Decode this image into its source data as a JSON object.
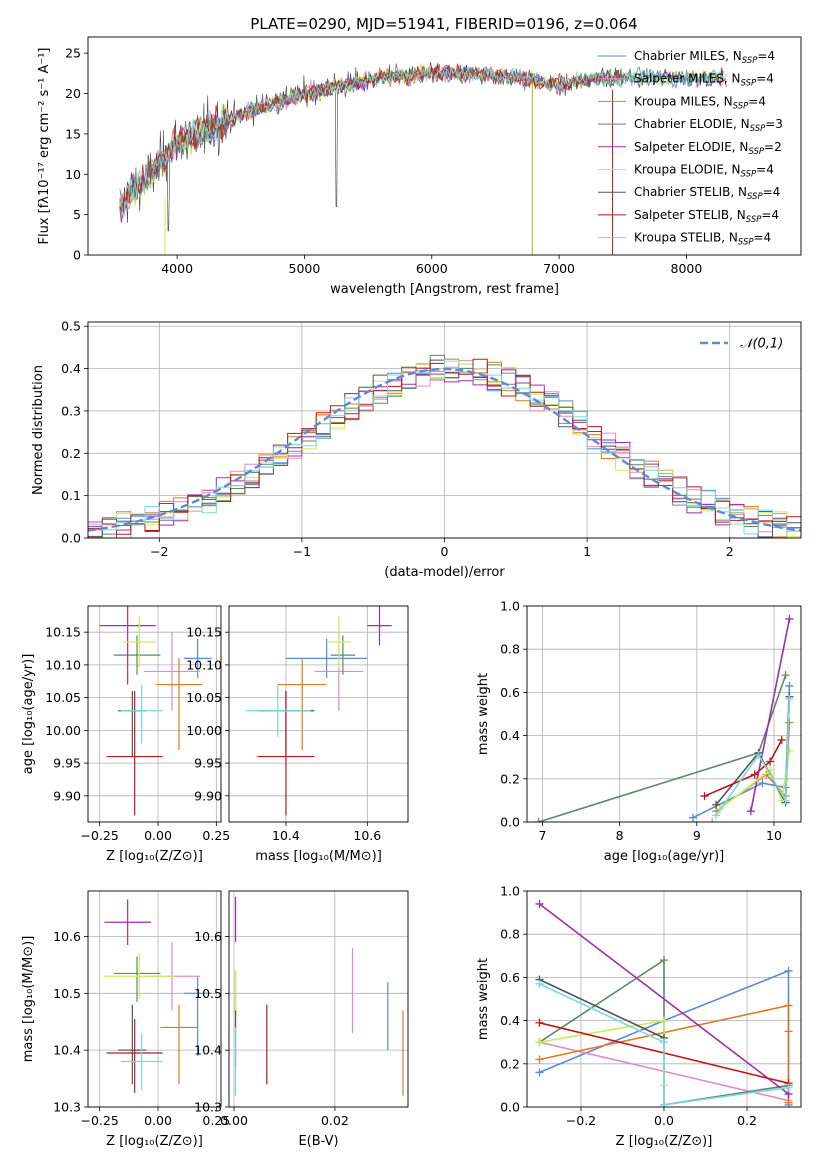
{
  "title": "PLATE=0290, MJD=51941, FIBERID=0196, z=0.064",
  "models": [
    {
      "name": "Chabrier MILES",
      "nssp": "4",
      "color": "#5b8bd8"
    },
    {
      "name": "Salpeter MILES",
      "nssp": "4",
      "color": "#e78ac3"
    },
    {
      "name": "Kroupa MILES",
      "nssp": "4",
      "color": "#e07a22"
    },
    {
      "name": "Chabrier ELODIE",
      "nssp": "3",
      "color": "#5a8a6a"
    },
    {
      "name": "Salpeter ELODIE",
      "nssp": "2",
      "color": "#9b30b0"
    },
    {
      "name": "Kroupa ELODIE",
      "nssp": "4",
      "color": "#c8ef5a"
    },
    {
      "name": "Chabrier STELIB",
      "nssp": "4",
      "color": "#555555"
    },
    {
      "name": "Salpeter STELIB",
      "nssp": "4",
      "color": "#c01818"
    },
    {
      "name": "Kroupa STELIB",
      "nssp": "4",
      "color": "#7ad8e0"
    }
  ],
  "chart_data": [
    {
      "type": "line",
      "xlabel": "wavelength [Angstrom, rest frame]",
      "ylabel": "Flux [fλ10⁻¹⁷ erg cm⁻² s⁻¹ A⁻¹]",
      "xlim": [
        3300,
        8900
      ],
      "ylim": [
        0,
        27
      ],
      "xticks": [
        4000,
        5000,
        6000,
        7000,
        8000
      ],
      "yticks": [
        0,
        5,
        10,
        15,
        20,
        25
      ],
      "data_x_range": [
        3550,
        7500
      ],
      "spectrum_trend": [
        [
          3550,
          6
        ],
        [
          3650,
          8
        ],
        [
          3800,
          10
        ],
        [
          4000,
          14
        ],
        [
          4300,
          16
        ],
        [
          4600,
          18
        ],
        [
          5000,
          20
        ],
        [
          5300,
          21
        ],
        [
          5600,
          22
        ],
        [
          6000,
          22.5
        ],
        [
          6300,
          22.5
        ],
        [
          6700,
          22
        ],
        [
          7000,
          21
        ],
        [
          7300,
          22
        ],
        [
          7500,
          22
        ]
      ],
      "model_end_x": [
        8220,
        7420,
        7480,
        8300,
        8320,
        8300,
        8300,
        7480,
        8320
      ],
      "grid": false,
      "legend": "upper right"
    },
    {
      "type": "step",
      "xlabel": "(data-model)/error",
      "ylabel": "Normed distribution",
      "xlim": [
        -2.5,
        2.5
      ],
      "ylim": [
        0,
        0.51
      ],
      "xticks": [
        -2,
        -1,
        0,
        1,
        2
      ],
      "yticks": [
        0.0,
        0.1,
        0.2,
        0.3,
        0.4,
        0.5
      ],
      "bin_width": 0.1,
      "reference_curve": "𝒩(0,1)",
      "reference_color": "#5b8bd8",
      "grid": true,
      "legend": "upper right"
    },
    {
      "type": "errorbar",
      "xlabel": "Z [log₁₀(Z/Z⊙)]",
      "ylabel": "age  [log₁₀(age/yr)]",
      "xlim": [
        -0.3,
        0.27
      ],
      "ylim": [
        9.86,
        10.19
      ],
      "xticks": [
        -0.25,
        0.0,
        0.25
      ],
      "yticks": [
        9.9,
        9.95,
        10.0,
        10.05,
        10.1,
        10.15
      ],
      "points": [
        {
          "x": 0.17,
          "y": 10.11,
          "xe": [
            0.06,
            0.06
          ],
          "ye": [
            0.03,
            0.03
          ]
        },
        {
          "x": 0.06,
          "y": 10.09,
          "xe": [
            0.12,
            0.12
          ],
          "ye": [
            0.06,
            0.06
          ]
        },
        {
          "x": 0.09,
          "y": 10.07,
          "xe": [
            0.1,
            0.1
          ],
          "ye": [
            0.1,
            0.04
          ]
        },
        {
          "x": -0.09,
          "y": 10.115,
          "xe": [
            0.1,
            0.1
          ],
          "ye": [
            0.03,
            0.03
          ]
        },
        {
          "x": -0.13,
          "y": 10.16,
          "xe": [
            0.12,
            0.12
          ],
          "ye": [
            0.09,
            0.03
          ]
        },
        {
          "x": -0.08,
          "y": 10.135,
          "xe": [
            0.07,
            0.07
          ],
          "ye": [
            0.04,
            0.04
          ]
        },
        {
          "x": -0.11,
          "y": 10.03,
          "xe": [
            0.06,
            0.06
          ],
          "ye": [
            0.07,
            0.03
          ]
        },
        {
          "x": -0.1,
          "y": 9.96,
          "xe": [
            0.12,
            0.12
          ],
          "ye": [
            0.09,
            0.1
          ]
        },
        {
          "x": -0.07,
          "y": 10.03,
          "xe": [
            0.09,
            0.09
          ],
          "ye": [
            0.05,
            0.04
          ]
        }
      ],
      "grid": true
    },
    {
      "type": "errorbar",
      "xlabel": "mass [log₁₀(M/M⊙)]",
      "ylabel": "",
      "xlim": [
        10.26,
        10.7
      ],
      "ylim": [
        9.86,
        10.19
      ],
      "xticks": [
        10.4,
        10.6
      ],
      "yticks": [
        9.9,
        9.95,
        10.0,
        10.05,
        10.1,
        10.15
      ],
      "points": [
        {
          "x": 10.5,
          "y": 10.11,
          "xe": [
            0.1,
            0.1
          ],
          "ye": [
            0.03,
            0.03
          ]
        },
        {
          "x": 10.53,
          "y": 10.09,
          "xe": [
            0.06,
            0.06
          ],
          "ye": [
            0.06,
            0.06
          ]
        },
        {
          "x": 10.44,
          "y": 10.07,
          "xe": [
            0.06,
            0.06
          ],
          "ye": [
            0.1,
            0.04
          ]
        },
        {
          "x": 10.54,
          "y": 10.115,
          "xe": [
            0.03,
            0.03
          ],
          "ye": [
            0.03,
            0.03
          ]
        },
        {
          "x": 10.63,
          "y": 10.16,
          "xe": [
            0.03,
            0.03
          ],
          "ye": [
            0.03,
            0.03
          ]
        },
        {
          "x": 10.53,
          "y": 10.135,
          "xe": [
            0.03,
            0.03
          ],
          "ye": [
            0.04,
            0.04
          ]
        },
        {
          "x": 10.4,
          "y": 10.03,
          "xe": [
            0.07,
            0.07
          ],
          "ye": [
            0.07,
            0.03
          ]
        },
        {
          "x": 10.4,
          "y": 9.96,
          "xe": [
            0.07,
            0.07
          ],
          "ye": [
            0.09,
            0.1
          ]
        },
        {
          "x": 10.38,
          "y": 10.03,
          "xe": [
            0.08,
            0.08
          ],
          "ye": [
            0.04,
            0.04
          ]
        }
      ],
      "grid": true
    },
    {
      "type": "line",
      "xlabel": "age  [log₁₀(age/yr)]",
      "ylabel": "mass weight",
      "xlim": [
        6.8,
        10.35
      ],
      "ylim": [
        0,
        1
      ],
      "xticks": [
        7,
        8,
        9,
        10
      ],
      "yticks": [
        0.0,
        0.2,
        0.4,
        0.6,
        0.8,
        1.0
      ],
      "series": [
        {
          "x": [
            8.95,
            9.85,
            10.15,
            10.2
          ],
          "y": [
            0.02,
            0.18,
            0.16,
            0.63
          ]
        },
        {
          "x": 9.2,
          "y": 0
        },
        {
          "x": [
            9.25,
            9.9,
            10.15,
            10.2
          ],
          "y": [
            0.05,
            0.22,
            0.12,
            0.46
          ]
        },
        {
          "x": [
            6.95,
            9.8,
            10.15
          ],
          "y": [
            0.0,
            0.32,
            0.68
          ]
        },
        {
          "x": [
            9.7,
            10.2
          ],
          "y": [
            0.05,
            0.94
          ]
        },
        {
          "x": [
            9.3,
            9.95,
            10.1,
            10.2
          ],
          "y": [
            0.06,
            0.24,
            0.1,
            0.33
          ]
        },
        {
          "x": [
            9.25,
            9.8,
            10.15,
            10.2
          ],
          "y": [
            0.08,
            0.32,
            0.09,
            0.58
          ]
        },
        {
          "x": [
            9.1,
            9.75,
            9.95,
            10.1
          ],
          "y": [
            0.12,
            0.22,
            0.28,
            0.38
          ]
        },
        {
          "x": [
            9.25,
            9.8,
            10.15,
            10.2
          ],
          "y": [
            0.03,
            0.31,
            0.1,
            0.57
          ]
        }
      ],
      "grid": true
    },
    {
      "type": "errorbar",
      "xlabel": "Z [log₁₀(Z/Z⊙)]",
      "ylabel": "mass [log₁₀(M/M⊙)]",
      "xlim": [
        -0.3,
        0.27
      ],
      "ylim": [
        10.3,
        10.68
      ],
      "xticks": [
        -0.25,
        0.0,
        0.25
      ],
      "yticks": [
        10.3,
        10.4,
        10.5,
        10.6
      ],
      "points": [
        {
          "x": 0.17,
          "y": 10.5,
          "xe": [
            0.06,
            0.06
          ],
          "ye": [
            0.11,
            0.03
          ]
        },
        {
          "x": 0.06,
          "y": 10.53,
          "xe": [
            0.12,
            0.12
          ],
          "ye": [
            0.06,
            0.06
          ]
        },
        {
          "x": 0.09,
          "y": 10.44,
          "xe": [
            0.08,
            0.08
          ],
          "ye": [
            0.1,
            0.04
          ]
        },
        {
          "x": -0.09,
          "y": 10.535,
          "xe": [
            0.1,
            0.1
          ],
          "ye": [
            0.05,
            0.03
          ]
        },
        {
          "x": -0.13,
          "y": 10.625,
          "xe": [
            0.1,
            0.1
          ],
          "ye": [
            0.04,
            0.04
          ]
        },
        {
          "x": -0.08,
          "y": 10.53,
          "xe": [
            0.15,
            0.15
          ],
          "ye": [
            0.04,
            0.04
          ]
        },
        {
          "x": -0.11,
          "y": 10.4,
          "xe": [
            0.06,
            0.06
          ],
          "ye": [
            0.06,
            0.08
          ]
        },
        {
          "x": -0.1,
          "y": 10.395,
          "xe": [
            0.12,
            0.12
          ],
          "ye": [
            0.07,
            0.06
          ]
        },
        {
          "x": -0.07,
          "y": 10.38,
          "xe": [
            0.09,
            0.09
          ],
          "ye": [
            0.05,
            0.05
          ]
        }
      ],
      "grid": true
    },
    {
      "type": "errorbar",
      "xlabel": "E(B-V)",
      "ylabel": "",
      "xlim": [
        -0.001,
        0.0345
      ],
      "ylim": [
        10.3,
        10.68
      ],
      "xticks": [
        0.0,
        0.02
      ],
      "yticks": [
        10.3,
        10.4,
        10.5,
        10.6
      ],
      "points": [
        {
          "x": 0.0305,
          "y": 10.46,
          "ye": [
            0.06,
            0.06
          ]
        },
        {
          "x": 0.0235,
          "y": 10.51,
          "ye": [
            0.08,
            0.07
          ]
        },
        {
          "x": 0.0335,
          "y": 10.4,
          "ye": [
            0.08,
            0.07
          ]
        },
        {
          "x": 0.0003,
          "y": 10.5,
          "ye": [
            0.04,
            0.04
          ]
        },
        {
          "x": 0.0003,
          "y": 10.63,
          "ye": [
            0.04,
            0.04
          ]
        },
        {
          "x": 0.0003,
          "y": 10.5,
          "ye": [
            0.04,
            0.04
          ]
        },
        {
          "x": 0.0003,
          "y": 10.42,
          "ye": [
            0.05,
            0.05
          ]
        },
        {
          "x": 0.0065,
          "y": 10.41,
          "ye": [
            0.07,
            0.07
          ]
        },
        {
          "x": 0.0003,
          "y": 10.38,
          "ye": [
            0.06,
            0.06
          ]
        }
      ],
      "grid": true
    },
    {
      "type": "line",
      "xlabel": "Z [log₁₀(Z/Z⊙)]",
      "ylabel": "mass weight",
      "xlim": [
        -0.33,
        0.33
      ],
      "ylim": [
        0,
        1
      ],
      "xticks": [
        -0.2,
        0.0,
        0.2
      ],
      "yticks": [
        0.0,
        0.2,
        0.4,
        0.6,
        0.8,
        1.0
      ],
      "series": [
        {
          "x": [
            -0.3,
            0.0,
            0.3,
            0.3
          ],
          "y": [
            0.16,
            0.4,
            0.63,
            0.01
          ]
        },
        {
          "x": [
            -0.3,
            0.3
          ],
          "y": [
            0.3,
            0.03
          ]
        },
        {
          "x": [
            -0.3,
            0.3,
            0.3,
            0.3
          ],
          "y": [
            0.22,
            0.47,
            0.35,
            0.02
          ]
        },
        {
          "x": [
            -0.3,
            0.0,
            0.0,
            0.3
          ],
          "y": [
            0.3,
            0.68,
            0.01,
            0.1
          ]
        },
        {
          "x": [
            -0.3,
            0.3
          ],
          "y": [
            0.94,
            0.06
          ]
        },
        {
          "x": [
            -0.3,
            0.0,
            0.0
          ],
          "y": [
            0.3,
            0.4,
            0.1
          ]
        },
        {
          "x": [
            -0.3,
            0.0
          ],
          "y": [
            0.59,
            0.32
          ]
        },
        {
          "x": [
            -0.3,
            0.3
          ],
          "y": [
            0.39,
            0.11
          ]
        },
        {
          "x": [
            -0.3,
            0.0,
            0.0,
            0.3
          ],
          "y": [
            0.57,
            0.3,
            0.01,
            0.09
          ]
        }
      ],
      "grid": true
    }
  ]
}
